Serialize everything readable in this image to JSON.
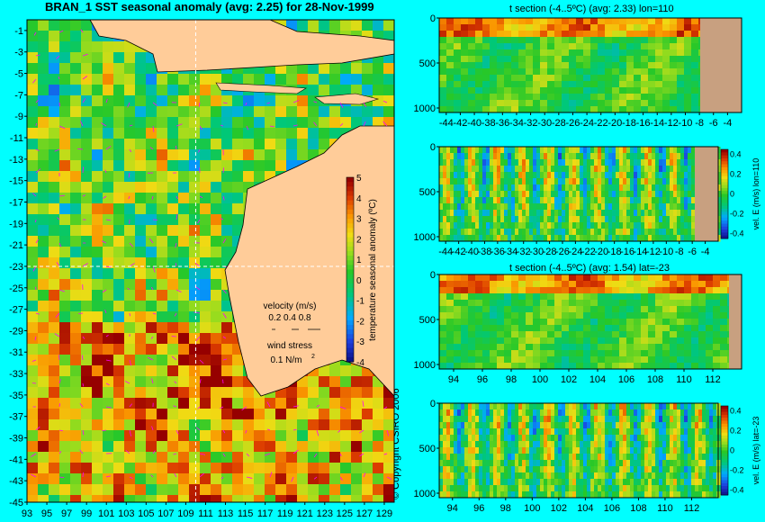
{
  "chart_data": [
    {
      "type": "heatmap",
      "title": "BRAN_1 SST seasonal anomaly (avg: 2.25) for 28-Nov-1999",
      "x_ticks": [
        "93",
        "95",
        "97",
        "99",
        "101",
        "103",
        "105",
        "107",
        "109",
        "111",
        "113",
        "115",
        "117",
        "119",
        "121",
        "123",
        "125",
        "127",
        "129"
      ],
      "y_ticks": [
        "-1",
        "-3",
        "-5",
        "-7",
        "-9",
        "-11",
        "-13",
        "-15",
        "-17",
        "-19",
        "-21",
        "-23",
        "-25",
        "-27",
        "-29",
        "-31",
        "-33",
        "-35",
        "-37",
        "-39",
        "-41",
        "-43",
        "-45"
      ],
      "xlim": [
        93,
        130
      ],
      "ylim": [
        -45,
        0
      ],
      "colorbar": {
        "label": "temperature seasonal anomaly (ºC)",
        "ticks": [
          "5",
          "4",
          "3",
          "2",
          "1",
          "0",
          "-1",
          "-2",
          "-3",
          "-4"
        ],
        "range": [
          -4,
          5
        ]
      },
      "velocity_legend": {
        "title": "velocity (m/s)",
        "values": "0.2 0.4 0.8"
      },
      "wind_legend": {
        "title": "wind stress",
        "value": "0.1 N/m",
        "superscript": "2"
      },
      "section_lines": {
        "lon": 110,
        "lat": -23
      }
    },
    {
      "type": "heatmap",
      "title": "t section (-4..5ºC) (avg: 2.33) lon=110",
      "x_ticks": [
        "-44",
        "-42",
        "-40",
        "-38",
        "-36",
        "-34",
        "-32",
        "-30",
        "-28",
        "-26",
        "-24",
        "-22",
        "-20",
        "-18",
        "-16",
        "-14",
        "-12",
        "-10",
        "-8",
        "-6",
        "-4"
      ],
      "y_ticks": [
        "0",
        "500",
        "1000"
      ],
      "xlim": [
        -45,
        -2
      ],
      "ylim": [
        1050,
        0
      ]
    },
    {
      "type": "heatmap",
      "title": "",
      "x_ticks": [
        "-44",
        "-42",
        "-40",
        "-38",
        "-36",
        "-34",
        "-32",
        "-30",
        "-28",
        "-26",
        "-24",
        "-22",
        "-20",
        "-18",
        "-16",
        "-14",
        "-12",
        "-10",
        "-8",
        "-6",
        "-4"
      ],
      "y_ticks": [
        "0",
        "500",
        "1000"
      ],
      "xlim": [
        -45,
        -2
      ],
      "ylim": [
        1050,
        0
      ],
      "colorbar": {
        "label": "vel. E (m/s) lon=110",
        "ticks": [
          "0.4",
          "0.2",
          "0",
          "-0.2",
          "-0.4"
        ],
        "range": [
          -0.45,
          0.45
        ]
      }
    },
    {
      "type": "heatmap",
      "title": "t section (-4..5ºC) (avg: 1.54) lat=-23",
      "x_ticks": [
        "94",
        "96",
        "98",
        "100",
        "102",
        "104",
        "106",
        "108",
        "110",
        "112"
      ],
      "y_ticks": [
        "0",
        "500",
        "1000"
      ],
      "xlim": [
        93,
        114
      ],
      "ylim": [
        1050,
        0
      ]
    },
    {
      "type": "heatmap",
      "title": "",
      "x_ticks": [
        "94",
        "96",
        "98",
        "100",
        "102",
        "104",
        "106",
        "108",
        "110",
        "112"
      ],
      "y_ticks": [
        "0",
        "500",
        "1000"
      ],
      "xlim": [
        93,
        114
      ],
      "ylim": [
        1050,
        0
      ],
      "colorbar": {
        "label": "vel. E (m/s) lat=-23",
        "ticks": [
          "0.4",
          "0.2",
          "0",
          "-0.2",
          "-0.4"
        ],
        "range": [
          -0.45,
          0.45
        ]
      }
    }
  ],
  "copyright": "© Copyright CSIRO 2006",
  "colors": {
    "background": "#00ffff",
    "land": "#ffcc99",
    "section_land": "#c8a080",
    "vector": "#ff00ff"
  }
}
